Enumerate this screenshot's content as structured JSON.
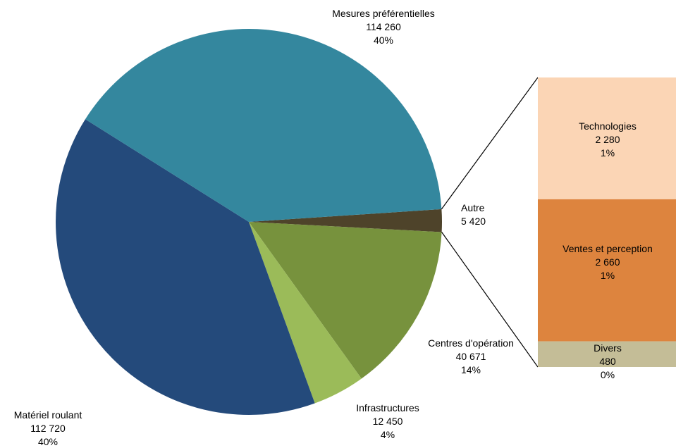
{
  "chart_data": {
    "type": "pie",
    "slices": [
      {
        "name": "Autre",
        "value": 5420,
        "value_label": "5 420",
        "pct_label": "",
        "color": "#4e432a"
      },
      {
        "name": "Centres d'opération",
        "value": 40671,
        "value_label": "40 671",
        "pct_label": "14%",
        "color": "#77923d"
      },
      {
        "name": "Infrastructures",
        "value": 12450,
        "value_label": "12 450",
        "pct_label": "4%",
        "color": "#9bbb59"
      },
      {
        "name": "Matériel roulant",
        "value": 112720,
        "value_label": "112 720",
        "pct_label": "40%",
        "color": "#244a7b"
      },
      {
        "name": "Mesures préférentielles",
        "value": 114260,
        "value_label": "114 260",
        "pct_label": "40%",
        "color": "#34879e"
      }
    ],
    "breakdown": {
      "parent": "Autre",
      "type": "stacked-bar",
      "segments": [
        {
          "name": "Technologies",
          "value": 2280,
          "value_label": "2 280",
          "pct_label": "1%",
          "color": "#fbd5b5"
        },
        {
          "name": "Ventes et perception",
          "value": 2660,
          "value_label": "2 660",
          "pct_label": "1%",
          "color": "#dd843e"
        },
        {
          "name": "Divers",
          "value": 480,
          "value_label": "480",
          "pct_label": "0%",
          "color": "#c4bd97"
        }
      ]
    }
  }
}
